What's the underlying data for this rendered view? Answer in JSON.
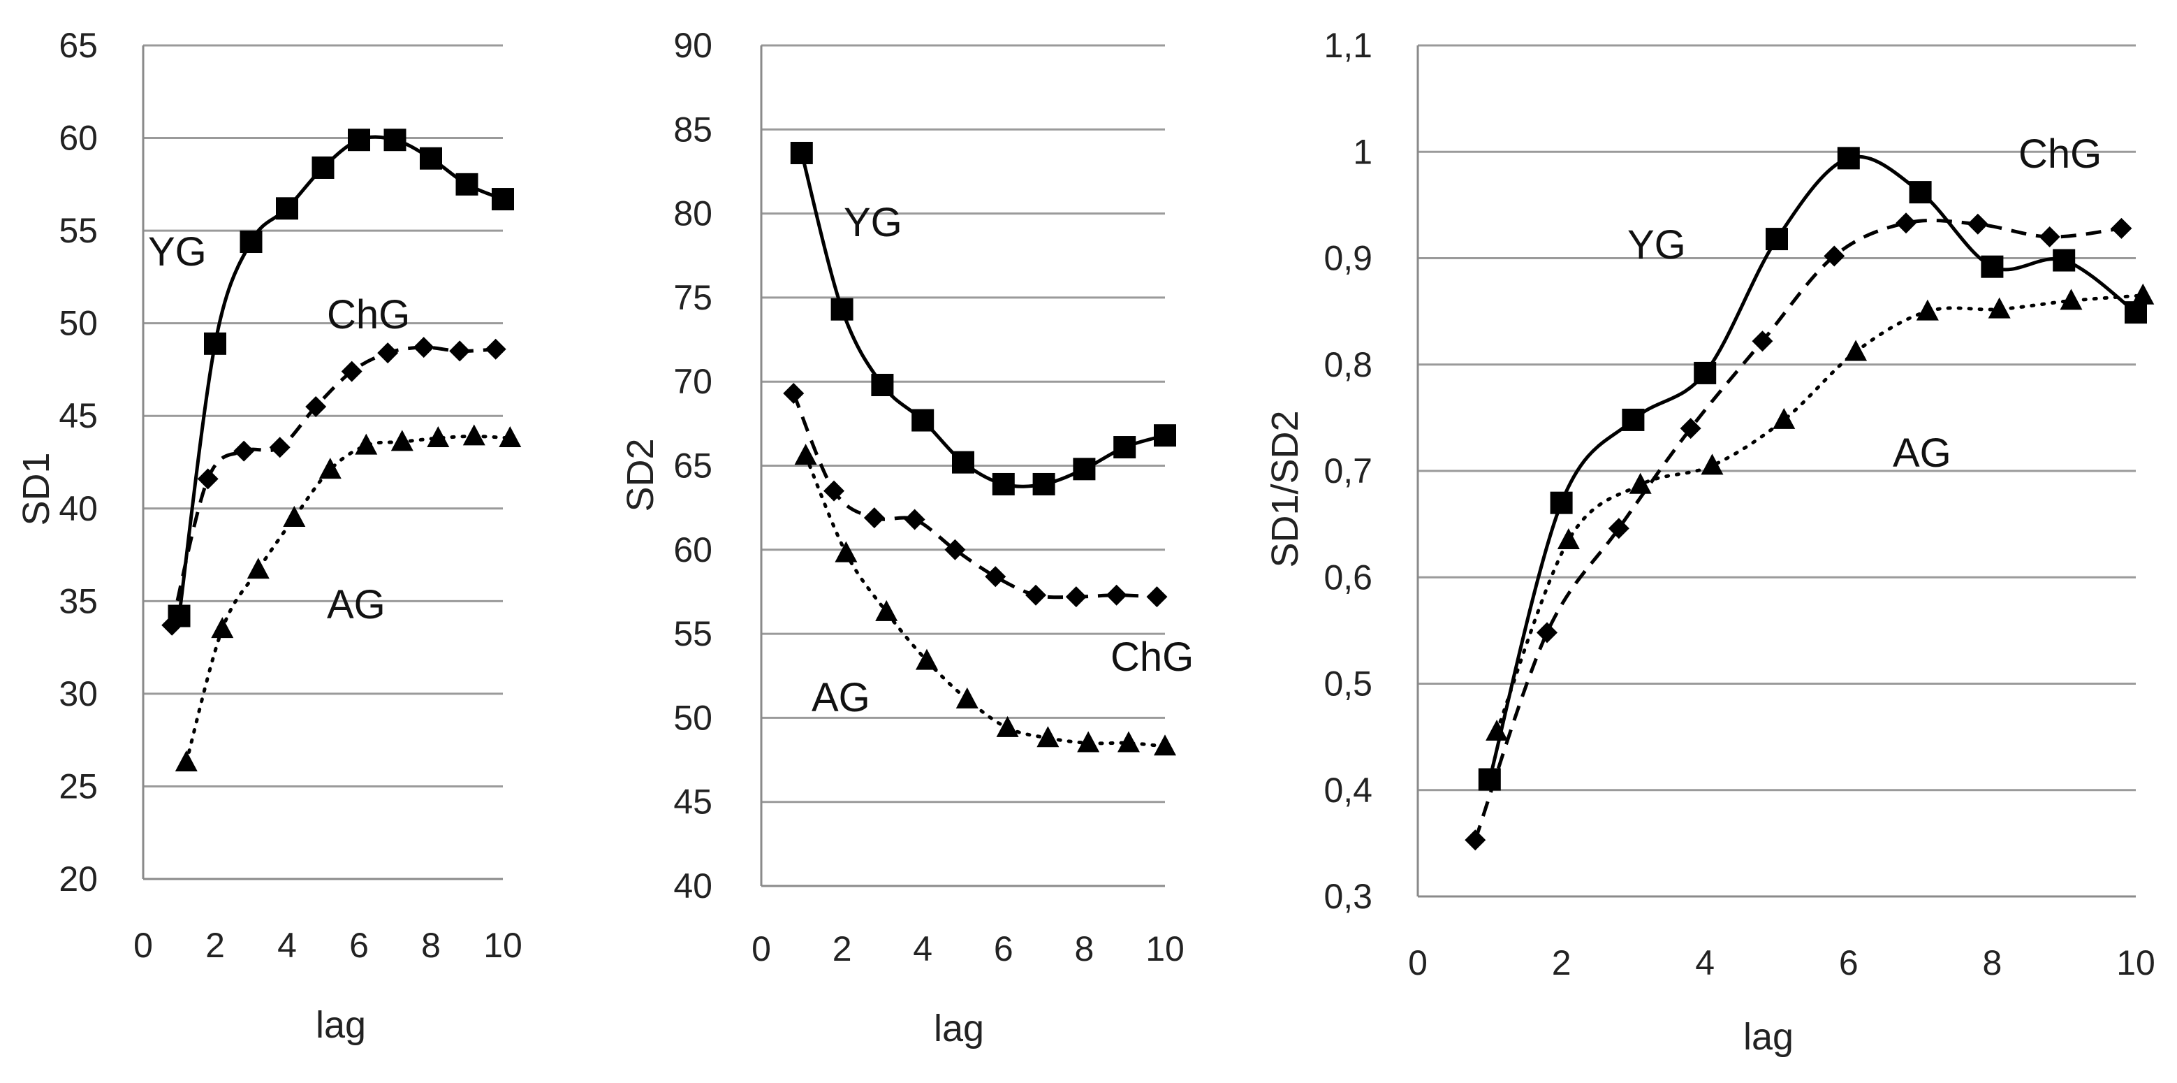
{
  "chart_data": [
    {
      "type": "line",
      "title": "",
      "xlabel": "lag",
      "ylabel": "SD1",
      "xlim": [
        0,
        10
      ],
      "ylim": [
        20,
        65
      ],
      "xticks": [
        "0",
        "2",
        "4",
        "6",
        "8",
        "10"
      ],
      "yticks": [
        "20",
        "25",
        "30",
        "35",
        "40",
        "45",
        "50",
        "55",
        "60",
        "65"
      ],
      "grid": "horizontal",
      "series": [
        {
          "name": "YG",
          "marker": "square",
          "line": "solid",
          "x": [
            1,
            2,
            3,
            4,
            5,
            6,
            7,
            8,
            9,
            10
          ],
          "values": [
            34.2,
            48.9,
            54.4,
            56.2,
            58.4,
            59.9,
            59.9,
            58.9,
            57.5,
            56.7
          ]
        },
        {
          "name": "ChG",
          "marker": "diamond",
          "line": "dashed",
          "x": [
            0.8,
            1.8,
            2.8,
            3.8,
            4.8,
            5.8,
            6.8,
            7.8,
            8.8,
            9.8
          ],
          "values": [
            33.7,
            41.6,
            43.1,
            43.3,
            45.5,
            47.4,
            48.4,
            48.7,
            48.5,
            48.6
          ]
        },
        {
          "name": "AG",
          "marker": "triangle",
          "line": "dotted",
          "x": [
            1.2,
            2.2,
            3.2,
            4.2,
            5.2,
            6.2,
            7.2,
            8.2,
            9.2,
            10.2
          ],
          "values": [
            26.3,
            33.5,
            36.7,
            39.5,
            42.1,
            43.4,
            43.6,
            43.8,
            43.9,
            43.8
          ]
        }
      ],
      "annotations": [
        "YG",
        "ChG",
        "AG"
      ]
    },
    {
      "type": "line",
      "title": "",
      "xlabel": "lag",
      "ylabel": "SD2",
      "xlim": [
        0,
        10
      ],
      "ylim": [
        40,
        90
      ],
      "xticks": [
        "0",
        "2",
        "4",
        "6",
        "8",
        "10"
      ],
      "yticks": [
        "40",
        "45",
        "50",
        "55",
        "60",
        "65",
        "70",
        "75",
        "80",
        "85",
        "90"
      ],
      "grid": "horizontal",
      "series": [
        {
          "name": "YG",
          "marker": "square",
          "line": "solid",
          "x": [
            1,
            2,
            3,
            4,
            5,
            6,
            7,
            8,
            9,
            10
          ],
          "values": [
            83.6,
            74.3,
            69.8,
            67.7,
            65.2,
            63.9,
            63.9,
            64.8,
            66.1,
            66.8
          ]
        },
        {
          "name": "ChG",
          "marker": "diamond",
          "line": "dashed",
          "x": [
            0.8,
            1.8,
            2.8,
            3.8,
            4.8,
            5.8,
            6.8,
            7.8,
            8.8,
            9.8
          ],
          "values": [
            69.3,
            63.5,
            61.9,
            61.8,
            60.0,
            58.4,
            57.3,
            57.2,
            57.3,
            57.2
          ]
        },
        {
          "name": "AG",
          "marker": "triangle",
          "line": "dotted",
          "x": [
            1.1,
            2.1,
            3.1,
            4.1,
            5.1,
            6.1,
            7.1,
            8.1,
            9.1,
            10
          ],
          "values": [
            65.6,
            59.8,
            56.3,
            53.4,
            51.1,
            49.4,
            48.8,
            48.5,
            48.5,
            48.3
          ]
        }
      ],
      "annotations": [
        "YG",
        "ChG",
        "AG"
      ]
    },
    {
      "type": "line",
      "title": "",
      "xlabel": "lag",
      "ylabel": "SD1/SD2",
      "xlim": [
        0,
        10
      ],
      "ylim": [
        0.3,
        1.1
      ],
      "xticks": [
        "0",
        "2",
        "4",
        "6",
        "8",
        "10"
      ],
      "yticks": [
        "0,3",
        "0,4",
        "0,5",
        "0,6",
        "0,7",
        "0,8",
        "0,9",
        "1",
        "1,1"
      ],
      "grid": "horizontal",
      "series": [
        {
          "name": "YG",
          "marker": "square",
          "line": "solid",
          "x": [
            1,
            2,
            3,
            4,
            5,
            6,
            7,
            8,
            9,
            10
          ],
          "values": [
            0.41,
            0.67,
            0.748,
            0.792,
            0.918,
            0.994,
            0.962,
            0.892,
            0.898,
            0.849
          ]
        },
        {
          "name": "ChG",
          "marker": "diamond",
          "line": "dashed",
          "x": [
            0.8,
            1.8,
            2.8,
            3.8,
            4.8,
            5.8,
            6.8,
            7.8,
            8.8,
            9.8
          ],
          "values": [
            0.353,
            0.548,
            0.646,
            0.74,
            0.822,
            0.902,
            0.933,
            0.932,
            0.92,
            0.928
          ]
        },
        {
          "name": "AG",
          "marker": "triangle",
          "line": "dotted",
          "x": [
            1.1,
            2.1,
            3.1,
            4.1,
            5.1,
            6.1,
            7.1,
            8.1,
            9.1,
            10.1
          ],
          "values": [
            0.455,
            0.635,
            0.687,
            0.705,
            0.748,
            0.812,
            0.85,
            0.852,
            0.86,
            0.865
          ]
        }
      ],
      "annotations": [
        "YG",
        "ChG",
        "AG"
      ]
    }
  ]
}
